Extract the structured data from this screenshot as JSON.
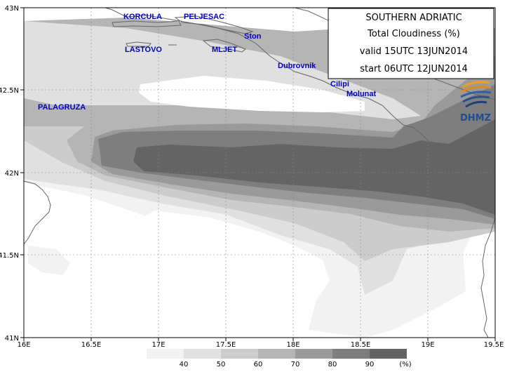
{
  "title_box": {
    "region": "SOUTHERN ADRIATIC",
    "field": "Total Cloudiness (%)",
    "valid": "valid 15UTC 13JUN2014",
    "start": "start 06UTC 12JUN2014"
  },
  "logo": {
    "text": "DHMZ"
  },
  "places": [
    {
      "name": "KORCULA"
    },
    {
      "name": "PELJESAC"
    },
    {
      "name": "Ston"
    },
    {
      "name": "LASTOVO"
    },
    {
      "name": "MLJET"
    },
    {
      "name": "Dubrovnik"
    },
    {
      "name": "Cilipi"
    },
    {
      "name": "Molunat"
    },
    {
      "name": "PALAGRUZA"
    }
  ],
  "axes": {
    "x_ticks": [
      "16E",
      "16.5E",
      "17E",
      "17.5E",
      "18E",
      "18.5E",
      "19E",
      "19.5E"
    ],
    "y_ticks": [
      "43N",
      "42.5N",
      "42N",
      "41.5N",
      "41N"
    ],
    "lon_range": [
      16,
      19.5
    ],
    "lat_range": [
      41,
      43
    ],
    "grid": "dotted"
  },
  "legend": {
    "unit": "(%)",
    "levels": [
      "40",
      "50",
      "60",
      "70",
      "80",
      "90"
    ],
    "colors": [
      "#f2f2f2",
      "#e0e0e0",
      "#cccccc",
      "#b5b5b5",
      "#9a9a9a",
      "#7e7e7e",
      "#646464"
    ]
  }
}
